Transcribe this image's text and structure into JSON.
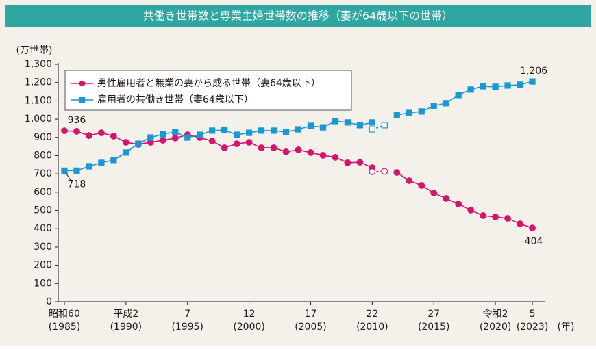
{
  "chart_data": {
    "type": "line",
    "title": "共働き世帯数と専業主婦世帯数の推移（妻が64歳以下の世帯）",
    "y_label": "(万世帯)",
    "x_label": "(年)",
    "x": [
      1985,
      1986,
      1987,
      1988,
      1989,
      1990,
      1991,
      1992,
      1993,
      1994,
      1995,
      1996,
      1997,
      1998,
      1999,
      2000,
      2001,
      2002,
      2003,
      2004,
      2005,
      2006,
      2007,
      2008,
      2009,
      2010,
      2011,
      2012,
      2013,
      2014,
      2015,
      2016,
      2017,
      2018,
      2019,
      2020,
      2021,
      2022,
      2023
    ],
    "xlim": [
      1984.5,
      2024
    ],
    "xticks": [
      {
        "value": 1985,
        "label": "昭和60",
        "sublabel": "(1985)"
      },
      {
        "value": 1990,
        "label": "平成2",
        "sublabel": "(1990)"
      },
      {
        "value": 1995,
        "label": "7",
        "sublabel": "(1995)"
      },
      {
        "value": 2000,
        "label": "12",
        "sublabel": "(2000)"
      },
      {
        "value": 2005,
        "label": "17",
        "sublabel": "(2005)"
      },
      {
        "value": 2010,
        "label": "22",
        "sublabel": "(2010)"
      },
      {
        "value": 2015,
        "label": "27",
        "sublabel": "(2015)"
      },
      {
        "value": 2020,
        "label": "令和2",
        "sublabel": "(2020)"
      },
      {
        "value": 2023,
        "label": "5",
        "sublabel": "(2023)"
      }
    ],
    "ylim": [
      0,
      1300
    ],
    "yticks": [
      0,
      100,
      200,
      300,
      400,
      500,
      600,
      700,
      800,
      900,
      {
        "value": 1000,
        "label": "1,000"
      },
      {
        "value": 1100,
        "label": "1,100"
      },
      {
        "value": 1200,
        "label": "1,200"
      },
      {
        "value": 1300,
        "label": "1,300"
      }
    ],
    "grid": false,
    "legend": "upper left",
    "series": [
      {
        "name": "男性雇用者と無業の妻から成る世帯（妻64歳以下）",
        "color": "#d4146e",
        "marker": "circle",
        "values": [
          936,
          933,
          910,
          925,
          907,
          873,
          862,
          873,
          884,
          896,
          914,
          899,
          880,
          843,
          865,
          873,
          843,
          843,
          821,
          832,
          817,
          802,
          791,
          761,
          764,
          734,
          null,
          708,
          663,
          637,
          596,
          566,
          536,
          502,
          472,
          465,
          457,
          427,
          404
        ],
        "excluded_values": [
          null,
          null,
          null,
          null,
          null,
          null,
          null,
          null,
          null,
          null,
          null,
          null,
          null,
          null,
          null,
          null,
          null,
          null,
          null,
          null,
          null,
          null,
          null,
          null,
          null,
          712,
          714,
          null,
          null,
          null,
          null,
          null,
          null,
          null,
          null,
          null,
          null,
          null,
          null
        ],
        "value_labels": [
          "936",
          null,
          null,
          null,
          null,
          null,
          null,
          null,
          null,
          null,
          null,
          null,
          null,
          null,
          null,
          null,
          null,
          null,
          null,
          null,
          null,
          null,
          null,
          null,
          null,
          null,
          null,
          null,
          null,
          null,
          null,
          null,
          null,
          null,
          null,
          null,
          null,
          null,
          "404"
        ]
      },
      {
        "name": "雇用者の共働き世帯（妻64歳以下）",
        "color": "#1a97d5",
        "marker": "square",
        "values": [
          718,
          718,
          742,
          761,
          776,
          817,
          865,
          899,
          918,
          929,
          899,
          914,
          937,
          940,
          914,
          925,
          937,
          937,
          929,
          944,
          963,
          955,
          989,
          982,
          967,
          982,
          null,
          1023,
          1034,
          1042,
          1072,
          1087,
          1132,
          1162,
          1180,
          1177,
          1184,
          1188,
          1206
        ],
        "excluded_values": [
          null,
          null,
          null,
          null,
          null,
          null,
          null,
          null,
          null,
          null,
          null,
          null,
          null,
          null,
          null,
          null,
          null,
          null,
          null,
          null,
          null,
          null,
          null,
          null,
          null,
          944,
          967,
          null,
          null,
          null,
          null,
          null,
          null,
          null,
          null,
          null,
          null,
          null,
          null
        ],
        "value_labels": [
          "718",
          null,
          null,
          null,
          null,
          null,
          null,
          null,
          null,
          null,
          null,
          null,
          null,
          null,
          null,
          null,
          null,
          null,
          null,
          null,
          null,
          null,
          null,
          null,
          null,
          null,
          null,
          null,
          null,
          null,
          null,
          null,
          null,
          null,
          null,
          null,
          null,
          null,
          "1,206"
        ]
      }
    ]
  }
}
